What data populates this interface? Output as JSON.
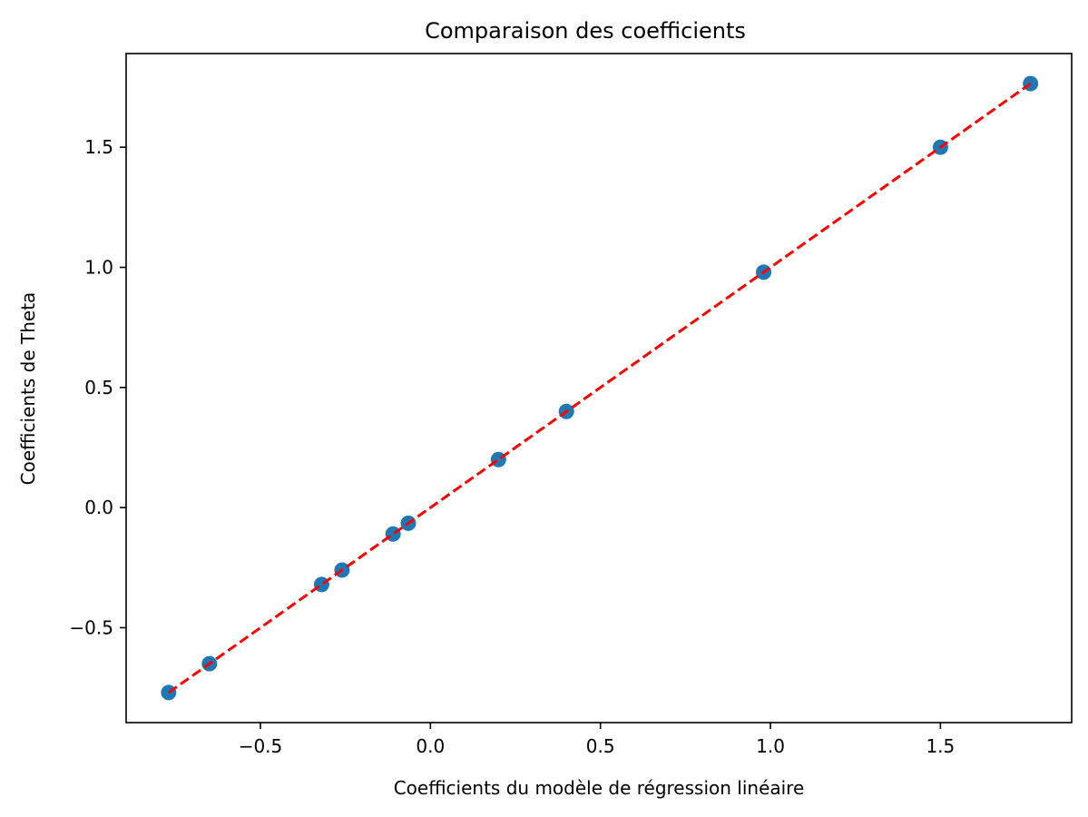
{
  "chart_data": {
    "type": "scatter",
    "title": "Comparaison des coefficients",
    "xlabel": "Coefficients du modèle de régression linéaire",
    "ylabel": "Coefficients de Theta",
    "xlim": [
      -0.895,
      1.886
    ],
    "ylim": [
      -0.895,
      1.89
    ],
    "x_ticks": [
      -0.5,
      0.0,
      0.5,
      1.0,
      1.5
    ],
    "x_tick_labels": [
      "−0.5",
      "0.0",
      "0.5",
      "1.0",
      "1.5"
    ],
    "y_ticks": [
      -0.5,
      0.0,
      0.5,
      1.0,
      1.5
    ],
    "y_tick_labels": [
      "−0.5",
      "0.0",
      "0.5",
      "1.0",
      "1.5"
    ],
    "grid": false,
    "series": [
      {
        "type": "scatter",
        "color": "#1f77b4",
        "points": [
          {
            "x": -0.77,
            "y": -0.77
          },
          {
            "x": -0.65,
            "y": -0.65
          },
          {
            "x": -0.32,
            "y": -0.32
          },
          {
            "x": -0.26,
            "y": -0.26
          },
          {
            "x": -0.11,
            "y": -0.11
          },
          {
            "x": -0.065,
            "y": -0.065
          },
          {
            "x": 0.2,
            "y": 0.2
          },
          {
            "x": 0.4,
            "y": 0.4
          },
          {
            "x": 0.98,
            "y": 0.98
          },
          {
            "x": 1.5,
            "y": 1.5
          },
          {
            "x": 1.765,
            "y": 1.765
          }
        ]
      },
      {
        "type": "line",
        "style": "dashed",
        "color": "#ff0000",
        "points": [
          {
            "x": -0.77,
            "y": -0.77
          },
          {
            "x": 1.765,
            "y": 1.765
          }
        ]
      }
    ]
  }
}
